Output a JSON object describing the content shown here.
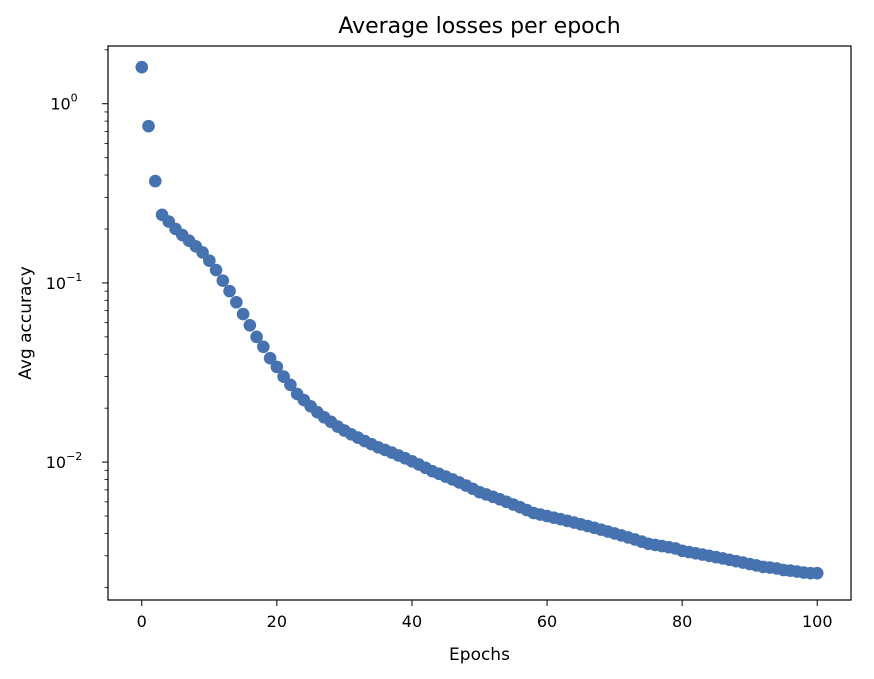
{
  "chart_data": {
    "type": "scatter",
    "title": "Average losses per epoch",
    "xlabel": "Epochs",
    "ylabel": "Avg accuracy",
    "xlim": [
      -5,
      105
    ],
    "ylim": [
      0.0017,
      2.1
    ],
    "yscale": "log",
    "grid": false,
    "marker_color": "#4672b0",
    "x_ticks": [
      0,
      20,
      40,
      60,
      80,
      100
    ],
    "x_tick_labels": [
      "0",
      "20",
      "40",
      "60",
      "80",
      "100"
    ],
    "y_ticks": [
      {
        "value": 1,
        "base": "10",
        "exp": "0"
      },
      {
        "value": 0.1,
        "base": "10",
        "exp": "−1"
      },
      {
        "value": 0.01,
        "base": "10",
        "exp": "−2"
      }
    ],
    "x": [
      0,
      1,
      2,
      3,
      4,
      5,
      6,
      7,
      8,
      9,
      10,
      11,
      12,
      13,
      14,
      15,
      16,
      17,
      18,
      19,
      20,
      21,
      22,
      23,
      24,
      25,
      26,
      27,
      28,
      29,
      30,
      31,
      32,
      33,
      34,
      35,
      36,
      37,
      38,
      39,
      40,
      41,
      42,
      43,
      44,
      45,
      46,
      47,
      48,
      49,
      50,
      51,
      52,
      53,
      54,
      55,
      56,
      57,
      58,
      59,
      60,
      61,
      62,
      63,
      64,
      65,
      66,
      67,
      68,
      69,
      70,
      71,
      72,
      73,
      74,
      75,
      76,
      77,
      78,
      79,
      80,
      81,
      82,
      83,
      84,
      85,
      86,
      87,
      88,
      89,
      90,
      91,
      92,
      93,
      94,
      95,
      96,
      97,
      98,
      99,
      100
    ],
    "y": [
      1.6,
      0.75,
      0.37,
      0.24,
      0.22,
      0.2,
      0.185,
      0.172,
      0.16,
      0.148,
      0.133,
      0.118,
      0.103,
      0.09,
      0.078,
      0.067,
      0.058,
      0.05,
      0.044,
      0.038,
      0.034,
      0.03,
      0.027,
      0.024,
      0.0222,
      0.0205,
      0.019,
      0.0178,
      0.0168,
      0.0158,
      0.015,
      0.0143,
      0.0137,
      0.0131,
      0.0126,
      0.0121,
      0.0117,
      0.0113,
      0.0109,
      0.0105,
      0.0101,
      0.0097,
      0.0093,
      0.0089,
      0.0086,
      0.0083,
      0.008,
      0.0077,
      0.0074,
      0.0071,
      0.0068,
      0.0066,
      0.0064,
      0.0062,
      0.006,
      0.0058,
      0.0056,
      0.0054,
      0.0052,
      0.0051,
      0.005,
      0.0049,
      0.0048,
      0.0047,
      0.0046,
      0.0045,
      0.0044,
      0.0043,
      0.0042,
      0.0041,
      0.004,
      0.0039,
      0.0038,
      0.0037,
      0.0036,
      0.0035,
      0.00345,
      0.0034,
      0.00335,
      0.0033,
      0.0032,
      0.00315,
      0.0031,
      0.00305,
      0.003,
      0.00295,
      0.0029,
      0.00285,
      0.0028,
      0.00275,
      0.0027,
      0.00265,
      0.0026,
      0.00258,
      0.00255,
      0.0025,
      0.00248,
      0.00245,
      0.00242,
      0.0024,
      0.0024
    ]
  }
}
